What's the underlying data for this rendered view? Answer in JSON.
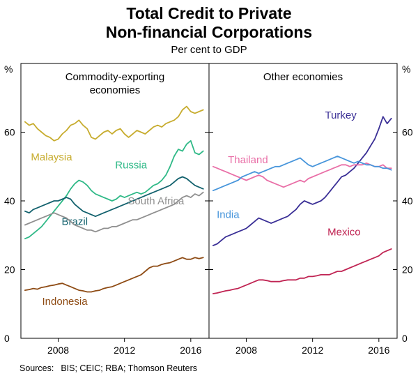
{
  "title": {
    "line1": "Total Credit to Private",
    "line2": "Non-financial Corporations"
  },
  "subtitle": "Per cent to GDP",
  "footer": {
    "label": "Sources:",
    "text": "BIS; CEIC; RBA; Thomson Reuters"
  },
  "chart_data": {
    "type": "line",
    "unit": "%",
    "ylim": [
      0,
      80
    ],
    "yticks": [
      0,
      20,
      40,
      60
    ],
    "xlim": [
      2005.75,
      2017.1
    ],
    "xticks": [
      2008,
      2012,
      2016
    ],
    "x_start": 2006.0,
    "x_step": 0.25,
    "grid": "off",
    "legend": "labels-on-lines",
    "panels": [
      {
        "title_lines": [
          "Commodity-exporting",
          "economies"
        ],
        "series": [
          {
            "name": "Malaysia",
            "color": "#C7AC2E",
            "label_x": 2007.6,
            "label_y": 52.8,
            "values": [
              63,
              62,
              62.5,
              61,
              60,
              59,
              58.5,
              57.5,
              58,
              59.5,
              60.5,
              62,
              62.5,
              63.5,
              62,
              61,
              58.5,
              58,
              59,
              60,
              60.5,
              59.5,
              60.5,
              61,
              59.5,
              58.5,
              59.5,
              60.5,
              60,
              59.5,
              60.5,
              61.5,
              62,
              61.5,
              62.5,
              63,
              63.5,
              64.5,
              66.5,
              67.5,
              66,
              65.5,
              66,
              66.5
            ]
          },
          {
            "name": "Russia",
            "color": "#2FB987",
            "label_x": 2012.4,
            "label_y": 50.5,
            "values": [
              29,
              29.5,
              30.5,
              31.5,
              32.5,
              34,
              35.5,
              37,
              38.5,
              40,
              41.5,
              43.5,
              45,
              46,
              45.5,
              44.5,
              43,
              42,
              41.5,
              41,
              40.5,
              40,
              40.5,
              41.5,
              41,
              41.5,
              42,
              42.5,
              42,
              42.5,
              43.5,
              44.5,
              45,
              46,
              47.5,
              50,
              53,
              55,
              54.5,
              56.5,
              57.5,
              54,
              53.5,
              54.5
            ]
          },
          {
            "name": "Brazil",
            "color": "#12616D",
            "label_x": 2009.0,
            "label_y": 34,
            "values": [
              37,
              36.5,
              37.5,
              38,
              38.5,
              39,
              39.5,
              40,
              40,
              40.5,
              41,
              40.5,
              39,
              38,
              37,
              36.5,
              36,
              35.5,
              36,
              36.5,
              37,
              37.5,
              38,
              38.5,
              39,
              39.5,
              40,
              40.5,
              41,
              41.5,
              42,
              42.5,
              43,
              43.5,
              44,
              44.5,
              45.5,
              46.5,
              47,
              46.5,
              45.5,
              44.5,
              44,
              43.5
            ]
          },
          {
            "name": "South Africa",
            "color": "#8F8F8F",
            "label_x": 2013.9,
            "label_y": 40,
            "values": [
              33,
              33.5,
              34,
              34.5,
              35,
              35.5,
              36,
              36.5,
              36,
              35.5,
              35,
              34,
              33,
              32.5,
              32,
              31.5,
              31.5,
              31,
              31.5,
              32,
              32,
              32.5,
              32.5,
              33,
              33.5,
              34,
              34.5,
              34.5,
              35,
              35.5,
              36,
              36.5,
              37,
              37.5,
              38,
              38.5,
              39,
              40,
              41,
              41.5,
              41,
              42,
              41.5,
              42.5
            ]
          },
          {
            "name": "Indonesia",
            "color": "#8E4B14",
            "label_x": 2008.4,
            "label_y": 10.8,
            "values": [
              14,
              14.2,
              14.5,
              14.3,
              14.8,
              15,
              15.3,
              15.5,
              15.8,
              16,
              15.5,
              15,
              14.5,
              14,
              13.8,
              13.5,
              13.5,
              13.8,
              14,
              14.5,
              14.8,
              15,
              15.5,
              16,
              16.5,
              17,
              17.5,
              18,
              18.5,
              19.5,
              20.5,
              21,
              21,
              21.5,
              21.8,
              22,
              22.5,
              23,
              23.5,
              23,
              23,
              23.5,
              23.2,
              23.5
            ]
          }
        ]
      },
      {
        "title_lines": [
          "Other economies"
        ],
        "series": [
          {
            "name": "Turkey",
            "color": "#3A2F96",
            "label_x": 2013.7,
            "label_y": 65,
            "values": [
              27,
              27.5,
              28.5,
              29.5,
              30,
              30.5,
              31,
              31.5,
              32,
              33,
              34,
              35,
              34.5,
              34,
              33.5,
              34,
              34.5,
              35,
              35.5,
              36.5,
              37.5,
              39,
              40,
              39.5,
              39,
              39.5,
              40,
              41,
              42.5,
              44,
              45.5,
              47,
              47.5,
              48.5,
              49.5,
              51,
              52.5,
              54,
              56,
              58,
              61,
              64.5,
              62.5,
              64
            ]
          },
          {
            "name": "Thailand",
            "color": "#E96FA7",
            "label_x": 2008.1,
            "label_y": 52,
            "values": [
              50,
              49.5,
              49,
              48.5,
              48,
              47.5,
              47,
              46.5,
              46,
              46.5,
              47,
              47.5,
              47,
              46,
              45.5,
              45,
              44.5,
              44,
              44.5,
              45,
              45.5,
              46,
              45.5,
              46.5,
              47,
              47.5,
              48,
              48.5,
              49,
              49.5,
              50,
              50.5,
              50.5,
              50,
              50.5,
              50.5,
              50.5,
              51,
              50.5,
              50,
              50,
              50.5,
              49.5,
              49.5
            ]
          },
          {
            "name": "India",
            "color": "#4795DB",
            "label_x": 2006.9,
            "label_y": 36,
            "values": [
              43,
              43.5,
              44,
              44.5,
              45,
              45.5,
              46,
              47,
              47.5,
              48,
              48.5,
              48,
              48.5,
              49,
              49.5,
              50,
              50,
              50.5,
              51,
              51.5,
              52,
              52.5,
              51.5,
              50.5,
              50,
              50.5,
              51,
              51.5,
              52,
              52.5,
              53,
              52.5,
              52,
              51.5,
              51,
              51.5,
              51,
              50.5,
              50.5,
              50,
              50,
              49.5,
              49.5,
              49
            ]
          },
          {
            "name": "Mexico",
            "color": "#C02453",
            "label_x": 2013.9,
            "label_y": 31,
            "values": [
              13,
              13.2,
              13.5,
              13.8,
              14,
              14.3,
              14.5,
              15,
              15.5,
              16,
              16.5,
              17,
              17,
              16.8,
              16.5,
              16.5,
              16.5,
              16.8,
              17,
              17,
              17,
              17.5,
              17.5,
              18,
              18,
              18.2,
              18.5,
              18.5,
              18.5,
              19,
              19.5,
              19.5,
              20,
              20.5,
              21,
              21.5,
              22,
              22.5,
              23,
              23.5,
              24,
              25,
              25.5,
              26
            ]
          }
        ]
      }
    ]
  }
}
